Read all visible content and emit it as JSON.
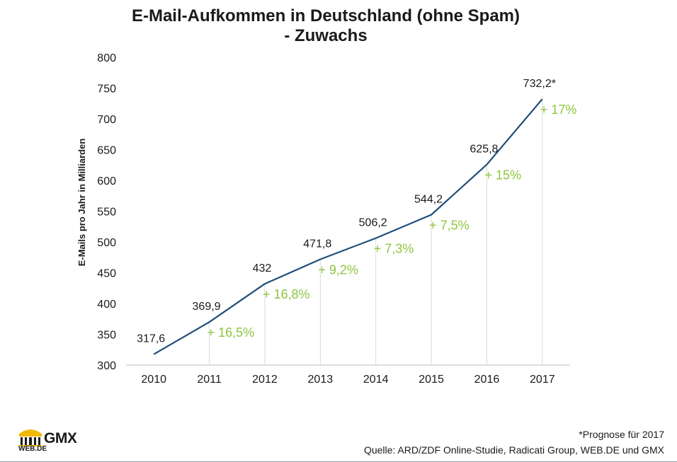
{
  "title_line1": "E-Mail-Aufkommen in Deutschland (ohne Spam)",
  "title_line2": "- Zuwachs",
  "footnote": "*Prognose für 2017",
  "source": "Quelle: ARD/ZDF Online-Studie, Radicati Group, WEB.DE und GMX",
  "logo": {
    "brand": "GMX",
    "sub": "WEB.DE"
  },
  "colors": {
    "line": "#1f4e79",
    "growth": "#8cc63f",
    "grid": "#d9d9d9",
    "axis": "#bfbfbf"
  },
  "chart_data": {
    "type": "line",
    "title": "E-Mail-Aufkommen in Deutschland (ohne Spam) - Zuwachs",
    "ylabel": "E-Mails pro Jahr in Milliarden",
    "xlabel": "",
    "ylim": [
      300,
      800
    ],
    "yticks": [
      300,
      350,
      400,
      450,
      500,
      550,
      600,
      650,
      700,
      750,
      800
    ],
    "categories": [
      "2010",
      "2011",
      "2012",
      "2013",
      "2014",
      "2015",
      "2016",
      "2017"
    ],
    "values": [
      317.6,
      369.9,
      432,
      471.8,
      506.2,
      544.2,
      625.8,
      732.2
    ],
    "value_labels": [
      "317,6",
      "369,9",
      "432",
      "471,8",
      "506,2",
      "544,2",
      "625,8",
      "732,2*"
    ],
    "growth_labels": [
      "",
      "+ 16,5%",
      "+ 16,8%",
      "+ 9,2%",
      "+ 7,3%",
      "+ 7,5%",
      "+ 15%",
      "+ 17%"
    ],
    "grid": false,
    "legend": "none"
  }
}
